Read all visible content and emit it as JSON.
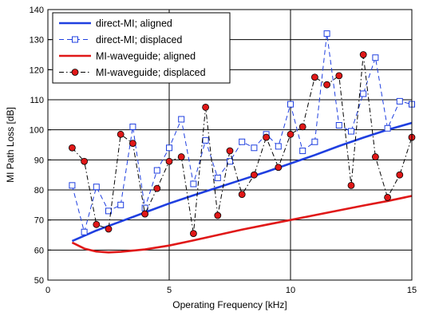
{
  "chart_data": {
    "type": "line",
    "title": "",
    "xlabel": "Operating Frequency [kHz]",
    "ylabel": "MI Path Loss [dB]",
    "xlim": [
      0,
      15
    ],
    "ylim": [
      50,
      140
    ],
    "xticks": [
      0,
      5,
      10,
      15
    ],
    "yticks": [
      50,
      60,
      70,
      80,
      90,
      100,
      110,
      120,
      130,
      140
    ],
    "grid": true,
    "legend_position": "top-left",
    "series": [
      {
        "name": "direct-MI; aligned",
        "color": "#1f3fe0",
        "style": "solid",
        "marker": "none",
        "x": [
          1,
          2,
          3,
          4,
          5,
          6,
          7,
          8,
          9,
          10,
          11,
          12,
          13,
          14,
          15
        ],
        "y": [
          63,
          66.5,
          69.5,
          72.5,
          75.5,
          78.2,
          80.8,
          83.4,
          86,
          88.8,
          91.6,
          94.6,
          97.4,
          100,
          102.3
        ]
      },
      {
        "name": "direct-MI; displaced",
        "color": "#1f3fe0",
        "style": "dashed",
        "marker": "square-open",
        "x": [
          1,
          1.5,
          2,
          2.5,
          3,
          3.5,
          4,
          4.5,
          5,
          5.5,
          6,
          6.5,
          7,
          7.5,
          8,
          8.5,
          9,
          9.5,
          10,
          10.5,
          11,
          11.5,
          12,
          12.5,
          13,
          13.5,
          14,
          14.5,
          15
        ],
        "y": [
          81.5,
          66,
          81,
          73,
          75,
          101,
          74,
          86.5,
          94,
          103.5,
          82,
          96.5,
          84,
          89.5,
          96,
          94,
          98.5,
          94.5,
          108.5,
          93,
          96,
          132,
          101.5,
          99.5,
          112,
          124,
          100.5,
          109.5,
          108.5
        ]
      },
      {
        "name": "MI-waveguide; aligned",
        "color": "#e01818",
        "style": "solid",
        "marker": "none",
        "x": [
          1,
          1.5,
          2,
          2.5,
          3,
          4,
          5,
          6,
          7,
          8,
          9,
          10,
          11,
          12,
          13,
          14,
          15
        ],
        "y": [
          62.5,
          60.5,
          59.5,
          59.2,
          59.4,
          60.2,
          61.5,
          63.2,
          65,
          66.8,
          68.4,
          70,
          71.6,
          73.2,
          74.8,
          76.3,
          78
        ]
      },
      {
        "name": "MI-waveguide; displaced",
        "color": "#000000",
        "marker_color": "#e01818",
        "style": "dashdot",
        "marker": "circle-filled",
        "x": [
          1,
          1.5,
          2,
          2.5,
          3,
          3.5,
          4,
          4.5,
          5,
          5.5,
          6,
          6.5,
          7,
          7.5,
          8,
          8.5,
          9,
          9.5,
          10,
          10.5,
          11,
          11.5,
          12,
          12.5,
          13,
          13.5,
          14,
          14.5,
          15
        ],
        "y": [
          94,
          89.5,
          68.5,
          67,
          98.5,
          95.5,
          72,
          80.5,
          89.5,
          91,
          65.5,
          107.5,
          71.5,
          93,
          78.5,
          85,
          97.5,
          87.5,
          98.5,
          101,
          117.5,
          115,
          118,
          81.5,
          125,
          91,
          77.5,
          85,
          97.5
        ]
      }
    ]
  }
}
